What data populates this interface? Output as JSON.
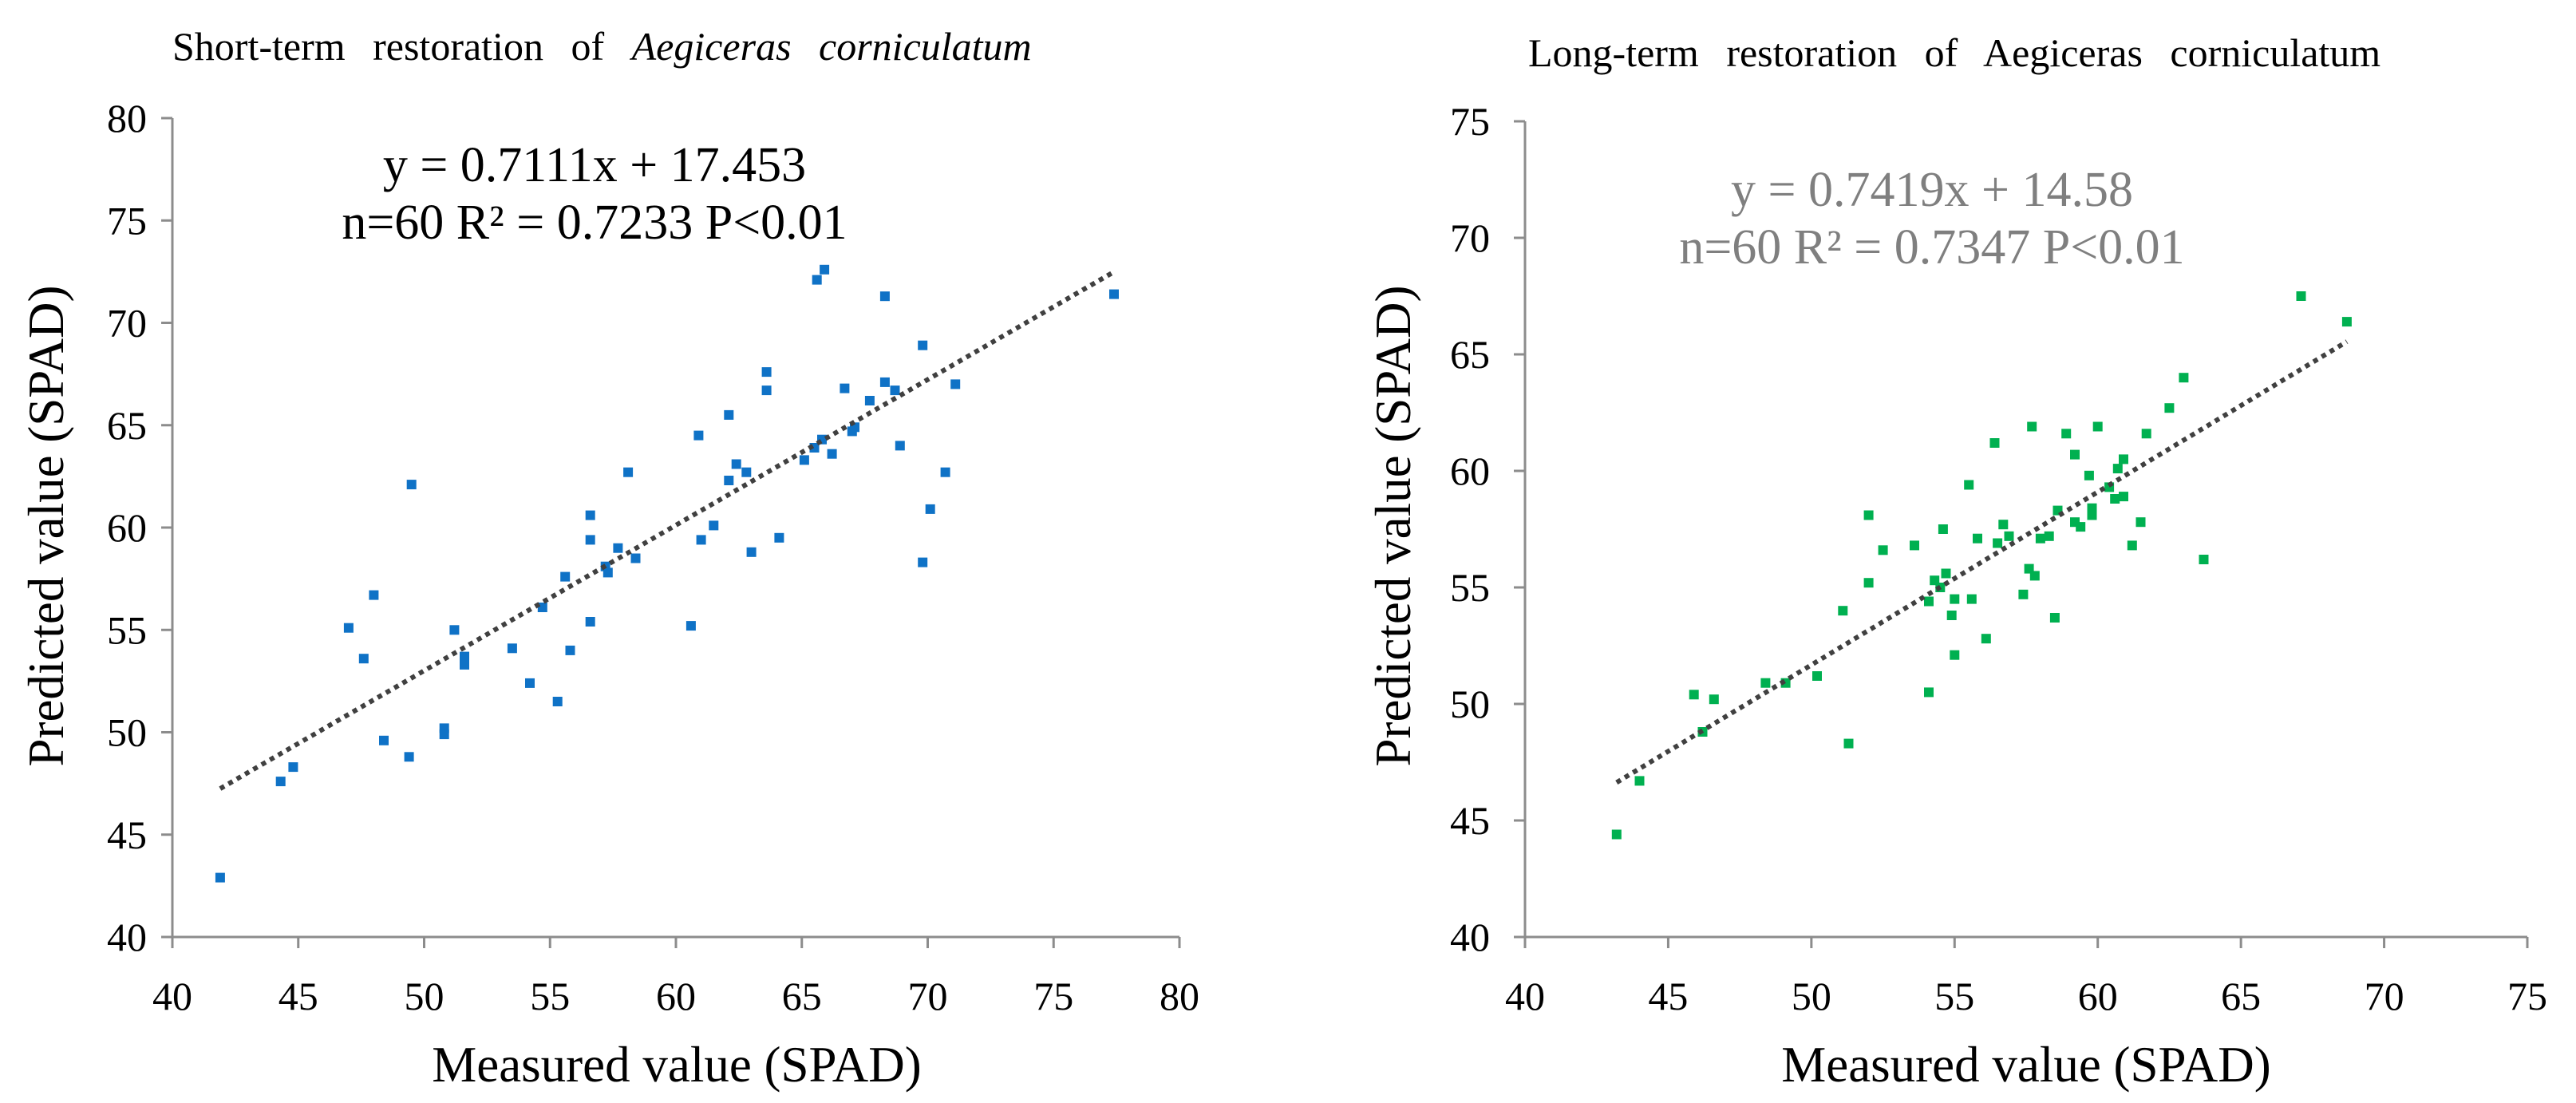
{
  "chart_data": [
    {
      "type": "scatter",
      "title_parts": [
        "Short-term restoration of ",
        "Aegiceras corniculatum"
      ],
      "xlabel": "Measured value (SPAD)",
      "ylabel": "Predicted value (SPAD)",
      "xlim": [
        40,
        80
      ],
      "ylim": [
        40,
        80
      ],
      "x_ticks": [
        40,
        45,
        50,
        55,
        60,
        65,
        70,
        75,
        80
      ],
      "y_ticks": [
        40,
        45,
        50,
        55,
        60,
        65,
        70,
        75,
        80
      ],
      "grid": false,
      "axis_color": "#8c8c8c",
      "annotations": [
        "y = 0.7111x + 17.453",
        "n=60 R² = 0.7233 P<0.01"
      ],
      "annotation_color": "#000000",
      "trendline": {
        "slope": 0.7111,
        "intercept": 17.453,
        "x_range": [
          41.9,
          77.4
        ],
        "style": "dotted",
        "color": "#404040"
      },
      "series": [
        {
          "color": "#0f72c6",
          "marker": "square",
          "x": [
            41.9,
            44.3,
            44.8,
            47.0,
            47.6,
            48.0,
            48.4,
            49.5,
            49.4,
            50.8,
            50.8,
            51.2,
            51.6,
            51.6,
            53.5,
            54.2,
            54.7,
            55.3,
            55.6,
            55.8,
            56.6,
            56.6,
            56.6,
            57.2,
            57.3,
            57.7,
            58.1,
            58.4,
            60.6,
            60.9,
            61.0,
            61.5,
            62.1,
            62.1,
            62.4,
            62.8,
            63.0,
            63.6,
            63.6,
            64.1,
            65.1,
            65.5,
            65.6,
            65.9,
            65.8,
            66.2,
            66.7,
            67.0,
            67.1,
            67.7,
            68.3,
            68.3,
            68.7,
            68.9,
            69.8,
            69.8,
            70.1,
            70.7,
            71.1,
            77.4
          ],
          "y": [
            42.9,
            47.6,
            48.3,
            55.1,
            53.6,
            56.7,
            49.6,
            62.1,
            48.8,
            50.2,
            49.9,
            55.0,
            53.7,
            53.3,
            54.1,
            52.4,
            56.1,
            51.5,
            57.6,
            54.0,
            60.6,
            59.4,
            55.4,
            58.1,
            57.8,
            59.0,
            62.7,
            58.5,
            55.2,
            64.5,
            59.4,
            60.1,
            65.5,
            62.3,
            63.1,
            62.7,
            58.8,
            66.7,
            67.6,
            59.5,
            63.3,
            63.9,
            72.1,
            72.6,
            64.3,
            63.6,
            66.8,
            64.7,
            64.9,
            66.2,
            71.3,
            67.1,
            66.7,
            64.0,
            68.9,
            58.3,
            60.9,
            62.7,
            67.0,
            71.4
          ]
        }
      ]
    },
    {
      "type": "scatter",
      "title": "Long-term restoration of Aegiceras corniculatum",
      "xlabel": "Measured value (SPAD)",
      "ylabel": "Predicted value (SPAD)",
      "xlim": [
        40,
        75
      ],
      "ylim": [
        40,
        75
      ],
      "x_ticks": [
        40,
        45,
        50,
        55,
        60,
        65,
        70,
        75
      ],
      "y_ticks": [
        40,
        45,
        50,
        55,
        60,
        65,
        70,
        75
      ],
      "grid": false,
      "axis_color": "#8c8c8c",
      "annotations": [
        "y = 0.7419x + 14.58",
        "n=60 R² = 0.7347 P<0.01"
      ],
      "annotation_color": "#7f7f7f",
      "trendline": {
        "slope": 0.7419,
        "intercept": 14.58,
        "x_range": [
          43.2,
          68.7
        ],
        "style": "dotted",
        "color": "#404040"
      },
      "series": [
        {
          "color": "#00b050",
          "marker": "square",
          "x": [
            43.2,
            44.0,
            45.9,
            46.2,
            46.6,
            48.4,
            49.1,
            50.2,
            51.1,
            51.3,
            52.0,
            52.0,
            52.5,
            53.6,
            54.1,
            54.1,
            54.3,
            54.5,
            54.6,
            54.7,
            54.9,
            55.0,
            55.0,
            55.5,
            55.6,
            55.8,
            56.1,
            56.4,
            56.5,
            56.7,
            56.9,
            57.4,
            57.6,
            57.7,
            57.8,
            58.0,
            58.3,
            58.5,
            58.6,
            58.9,
            59.2,
            59.2,
            59.4,
            59.7,
            59.8,
            59.8,
            60.0,
            60.4,
            60.6,
            60.7,
            60.9,
            60.9,
            61.2,
            61.5,
            61.7,
            62.5,
            63.0,
            63.7,
            67.1,
            68.7
          ],
          "y": [
            44.4,
            46.7,
            50.4,
            48.8,
            50.2,
            50.9,
            50.9,
            51.2,
            54.0,
            48.3,
            58.1,
            55.2,
            56.6,
            56.8,
            50.5,
            54.4,
            55.3,
            55.0,
            57.5,
            55.6,
            53.8,
            54.5,
            52.1,
            59.4,
            54.5,
            57.1,
            52.8,
            61.2,
            56.9,
            57.7,
            57.2,
            54.7,
            55.8,
            61.9,
            55.5,
            57.1,
            57.2,
            53.7,
            58.3,
            61.6,
            57.8,
            60.7,
            57.6,
            59.8,
            58.4,
            58.1,
            61.9,
            59.3,
            58.8,
            60.1,
            60.5,
            58.9,
            56.8,
            57.8,
            61.6,
            62.7,
            64.0,
            56.2,
            67.5,
            66.4
          ]
        }
      ]
    }
  ]
}
